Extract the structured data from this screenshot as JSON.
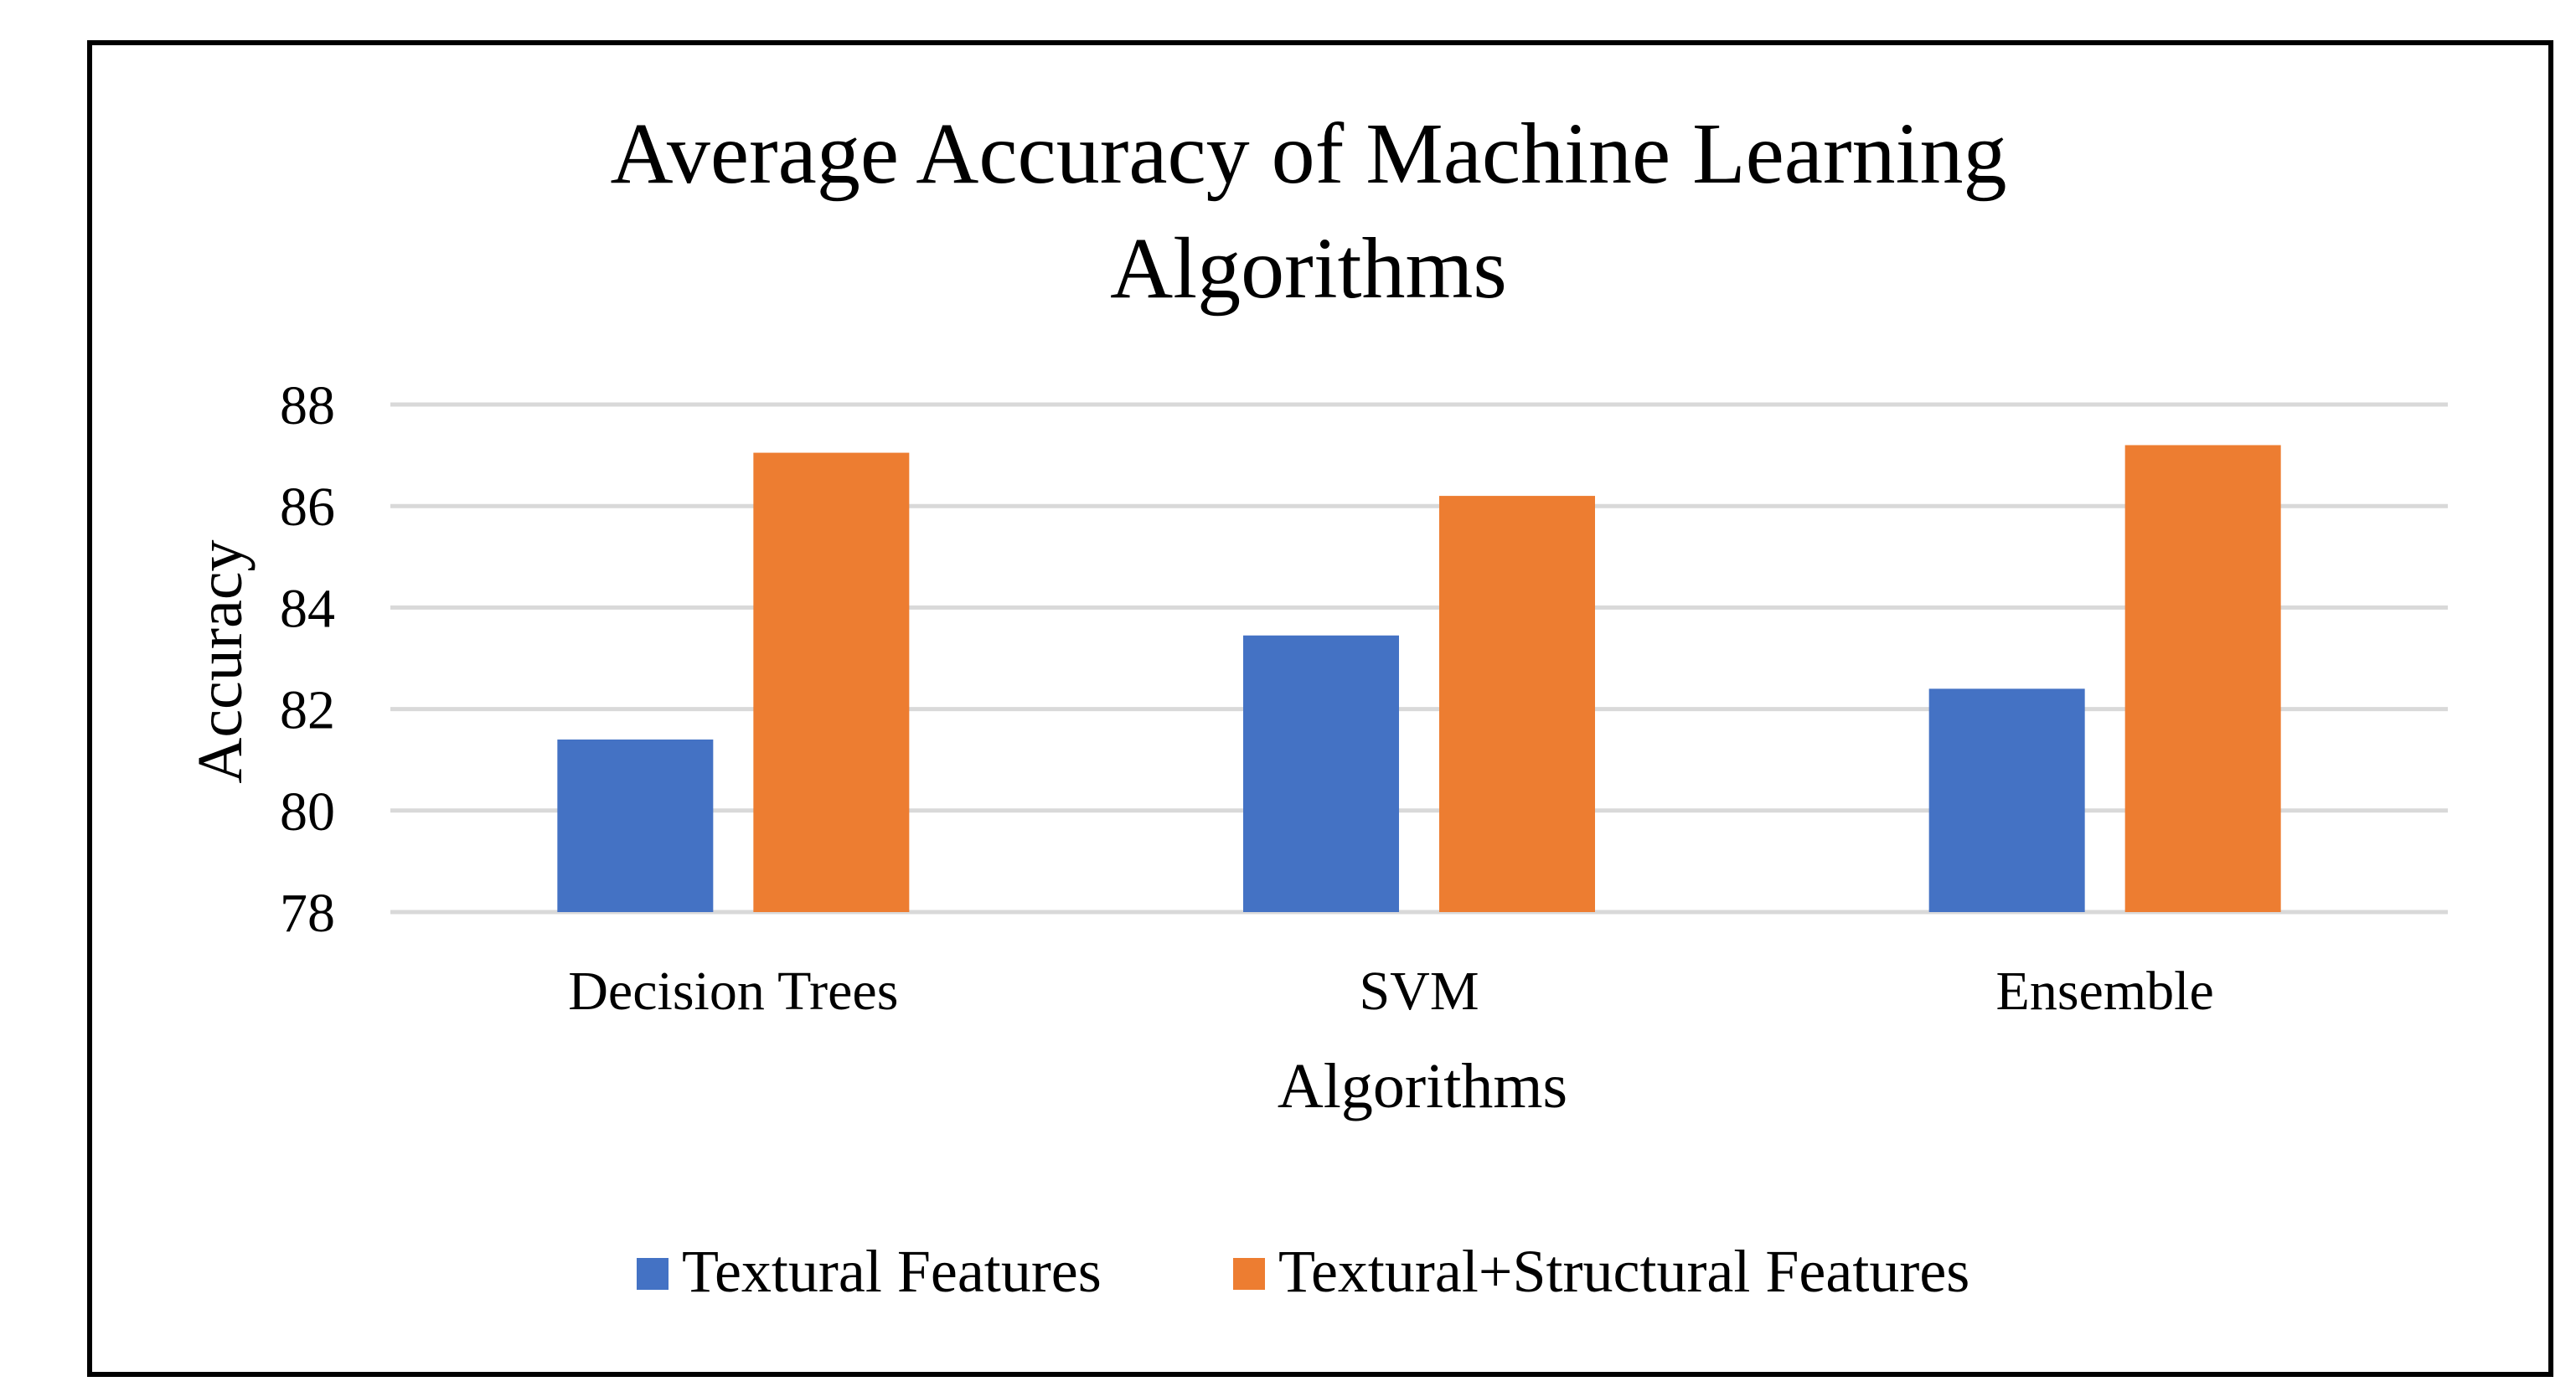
{
  "chart_data": {
    "type": "bar",
    "title_lines": [
      "Average Accuracy of Machine Learning",
      "Algorithms"
    ],
    "xlabel": "Algorithms",
    "ylabel": "Accuracy",
    "categories": [
      "Decision Trees",
      "SVM",
      "Ensemble"
    ],
    "series": [
      {
        "name": "Textural Features",
        "color": "#4472C4",
        "values": [
          81.4,
          83.45,
          82.4
        ]
      },
      {
        "name": "Textural+Structural Features",
        "color": "#ED7D31",
        "values": [
          87.05,
          86.2,
          87.2
        ]
      }
    ],
    "ylim": [
      78,
      88
    ],
    "yticks": [
      78,
      80,
      82,
      84,
      86,
      88
    ],
    "grid": true,
    "legend": "bottom"
  }
}
